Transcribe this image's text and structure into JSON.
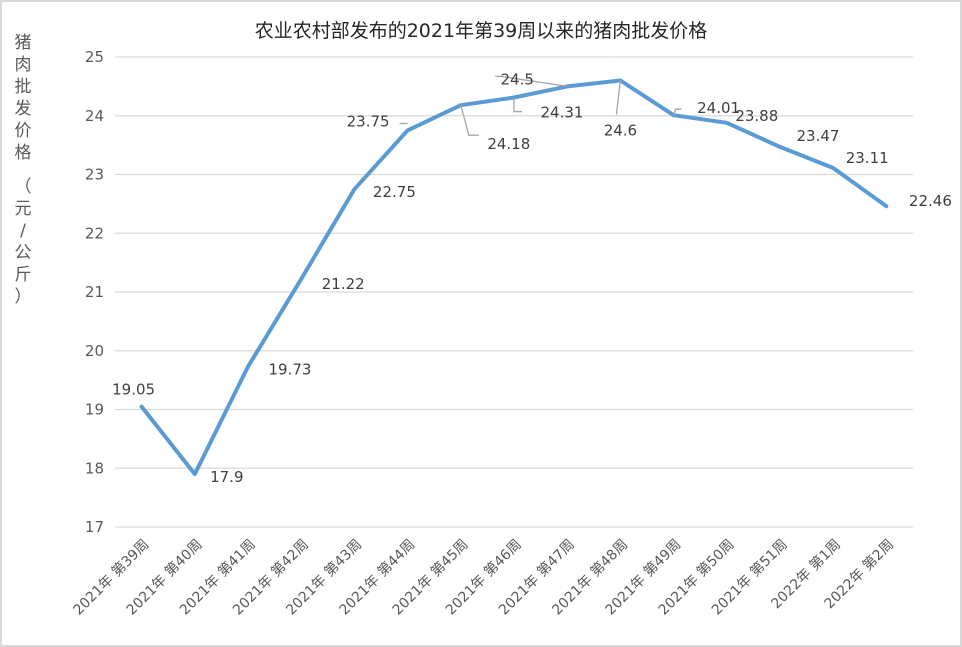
{
  "chart_data": {
    "type": "line",
    "title": "农业农村部发布的2021年第39周以来的猪肉批发价格",
    "xlabel": "",
    "ylabel": "猪肉批发价格（元/公斤）",
    "ylim": [
      17,
      25
    ],
    "yticks": [
      17,
      18,
      19,
      20,
      21,
      22,
      23,
      24,
      25
    ],
    "grid": true,
    "legend": "none",
    "categories": [
      "2021年 第39周",
      "2021年 第40周",
      "2021年 第41周",
      "2021年 第42周",
      "2021年 第43周",
      "2021年 第44周",
      "2021年 第45周",
      "2021年 第46周",
      "2021年 第47周",
      "2021年 第48周",
      "2021年 第49周",
      "2021年 第50周",
      "2021年 第51周",
      "2022年 第1周",
      "2022年 第2周"
    ],
    "series": [
      {
        "name": "猪肉批发价格",
        "color": "#5b9bd5",
        "values": [
          19.05,
          17.9,
          19.73,
          21.22,
          22.75,
          23.75,
          24.18,
          24.31,
          24.5,
          24.6,
          24.01,
          23.88,
          23.47,
          23.11,
          22.46
        ]
      }
    ]
  },
  "labels": {
    "title": "农业农村部发布的2021年第39周以来的猪肉批发价格",
    "ylabel_chars": [
      "猪",
      "肉",
      "批",
      "发",
      "价",
      "格",
      "（",
      "元",
      "/",
      "公",
      "斤",
      "）"
    ]
  }
}
